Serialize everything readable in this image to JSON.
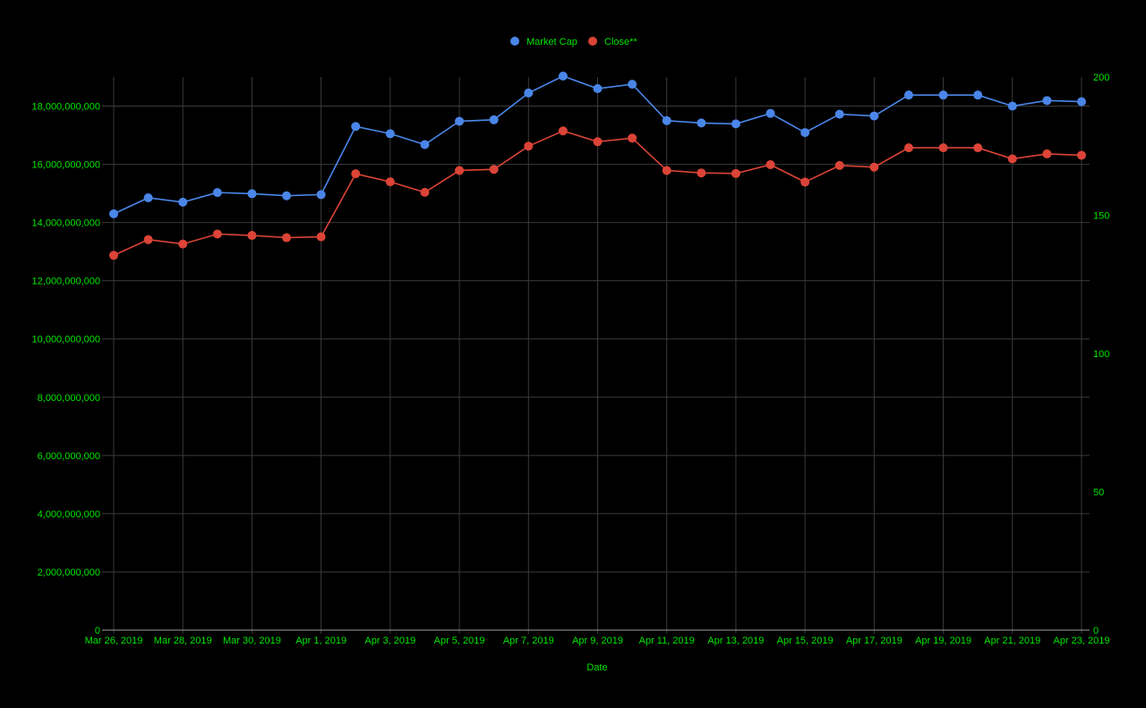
{
  "chart_data": {
    "type": "line",
    "xlabel": "Date",
    "x_tick_labels": [
      "Mar 26, 2019",
      "Mar 28, 2019",
      "Mar 30, 2019",
      "Apr 1, 2019",
      "Apr 3, 2019",
      "Apr 5, 2019",
      "Apr 7, 2019",
      "Apr 9, 2019",
      "Apr 11, 2019",
      "Apr 13, 2019",
      "Apr 15, 2019",
      "Apr 17, 2019",
      "Apr 19, 2019",
      "Apr 21, 2019",
      "Apr 23, 2019"
    ],
    "x": [
      "2019-03-26",
      "2019-03-27",
      "2019-03-28",
      "2019-03-29",
      "2019-03-30",
      "2019-03-31",
      "2019-04-01",
      "2019-04-02",
      "2019-04-03",
      "2019-04-04",
      "2019-04-05",
      "2019-04-06",
      "2019-04-07",
      "2019-04-08",
      "2019-04-09",
      "2019-04-10",
      "2019-04-11",
      "2019-04-12",
      "2019-04-13",
      "2019-04-14",
      "2019-04-15",
      "2019-04-16",
      "2019-04-17",
      "2019-04-18",
      "2019-04-19",
      "2019-04-20",
      "2019-04-21",
      "2019-04-22",
      "2019-04-23"
    ],
    "y_left": {
      "ylim": [
        0,
        19000000000
      ],
      "tick_values": [
        0,
        2000000000,
        4000000000,
        6000000000,
        8000000000,
        10000000000,
        12000000000,
        14000000000,
        16000000000,
        18000000000
      ],
      "tick_labels": [
        "0",
        "2,000,000,000",
        "4,000,000,000",
        "6,000,000,000",
        "8,000,000,000",
        "10,000,000,000",
        "12,000,000,000",
        "14,000,000,000",
        "16,000,000,000",
        "18,000,000,000"
      ]
    },
    "y_right": {
      "ylim": [
        0,
        200
      ],
      "tick_values": [
        0,
        50,
        100,
        150,
        200
      ],
      "tick_labels": [
        "0",
        "50",
        "100",
        "150",
        "200"
      ]
    },
    "series": [
      {
        "name": "Market Cap",
        "axis": "left",
        "color": "#4a86e8",
        "values": [
          14300000000,
          14850000000,
          14700000000,
          15030000000,
          14990000000,
          14920000000,
          14960000000,
          17300000000,
          17050000000,
          16680000000,
          17480000000,
          17530000000,
          18450000000,
          19030000000,
          18600000000,
          18750000000,
          17500000000,
          17420000000,
          17390000000,
          17750000000,
          17090000000,
          17720000000,
          17660000000,
          18380000000,
          18380000000,
          18380000000,
          18000000000,
          18190000000,
          18150000000
        ]
      },
      {
        "name": "Close**",
        "axis": "right",
        "color": "#db4437",
        "values": [
          135.5,
          141.2,
          139.6,
          143.2,
          142.7,
          141.9,
          142.2,
          165.0,
          162.1,
          158.3,
          166.2,
          166.6,
          175.0,
          180.5,
          176.6,
          177.9,
          166.2,
          165.3,
          165.1,
          168.3,
          162.0,
          168.0,
          167.4,
          174.4,
          174.4,
          174.4,
          170.4,
          172.2,
          171.7
        ]
      }
    ],
    "grid": true,
    "legend_position": "top-center"
  },
  "colors": {
    "background": "#000000",
    "text": "#00e600",
    "grid": "#3a3a3a",
    "axis_baseline": "#9e9e9e"
  }
}
